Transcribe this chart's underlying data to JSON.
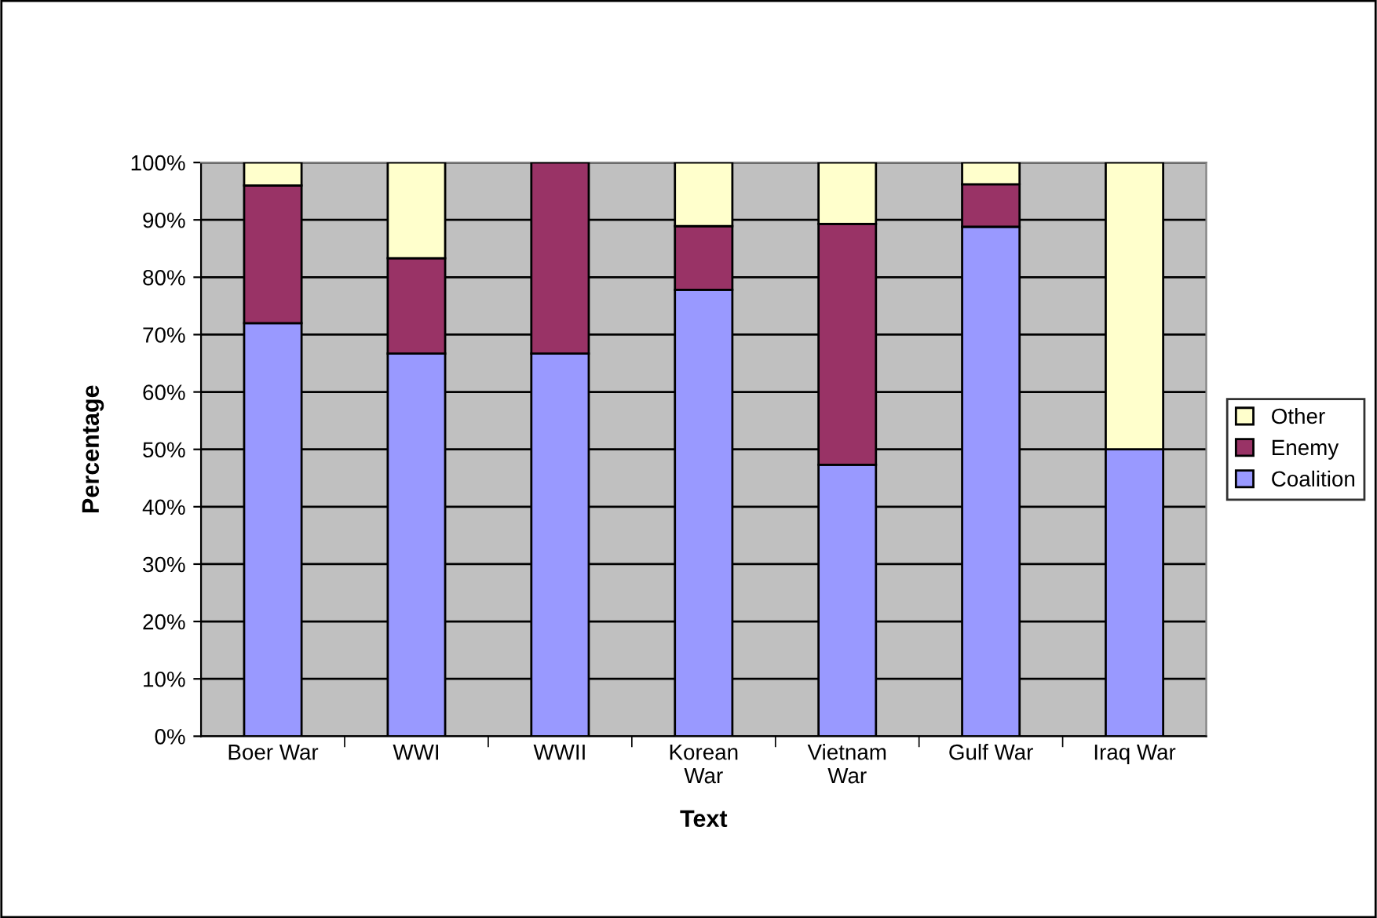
{
  "chart_data": {
    "type": "bar",
    "stacked": true,
    "xlabel": "Text",
    "ylabel": "Percentage",
    "categories": [
      "Boer War",
      "WWI",
      "WWII",
      "Korean\nWar",
      "Vietnam\nWar",
      "Gulf War",
      "Iraq War"
    ],
    "series": [
      {
        "name": "Coalition",
        "color": "#9999ff",
        "values": [
          72,
          66.7,
          66.7,
          77.8,
          47.3,
          88.8,
          50
        ]
      },
      {
        "name": "Enemy",
        "color": "#993366",
        "values": [
          24,
          16.6,
          33.3,
          11.1,
          42,
          7.4,
          0
        ]
      },
      {
        "name": "Other",
        "color": "#ffffcc",
        "values": [
          4,
          16.7,
          0,
          11.1,
          10.7,
          3.8,
          50
        ]
      }
    ],
    "ylim": [
      0,
      100
    ],
    "yticks": [
      {
        "value": 0,
        "label": "0%"
      },
      {
        "value": 10,
        "label": "10%"
      },
      {
        "value": 20,
        "label": "20%"
      },
      {
        "value": 30,
        "label": "30%"
      },
      {
        "value": 40,
        "label": "40%"
      },
      {
        "value": 50,
        "label": "50%"
      },
      {
        "value": 60,
        "label": "60%"
      },
      {
        "value": 70,
        "label": "70%"
      },
      {
        "value": 80,
        "label": "80%"
      },
      {
        "value": 90,
        "label": "90%"
      },
      {
        "value": 100,
        "label": "100%"
      }
    ],
    "grid": "y",
    "legend": "right"
  }
}
